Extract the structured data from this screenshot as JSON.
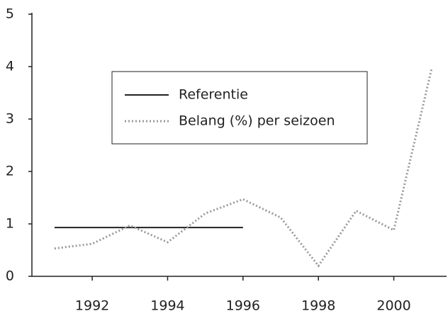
{
  "chart_data": {
    "type": "line",
    "xlim": [
      1990.4,
      2001.4
    ],
    "xticks": [
      1992,
      1994,
      1996,
      1998,
      2000
    ],
    "ylim": [
      0,
      5
    ],
    "yticks": [
      0,
      1,
      2,
      3,
      4,
      5
    ],
    "grid": false,
    "legend": "center",
    "series": [
      {
        "name": "Referentie",
        "color": "#222222",
        "style": "solid",
        "x": [
          1991,
          1996
        ],
        "values": [
          0.93,
          0.93
        ]
      },
      {
        "name": "Belang (%) per seizoen",
        "color": "#999999",
        "style": "dotted",
        "x": [
          1991,
          1992,
          1993,
          1994,
          1995,
          1996,
          1997,
          1998,
          1999,
          2000,
          2001
        ],
        "values": [
          0.53,
          0.62,
          0.97,
          0.65,
          1.2,
          1.47,
          1.12,
          0.2,
          1.25,
          0.88,
          3.95
        ]
      }
    ]
  }
}
